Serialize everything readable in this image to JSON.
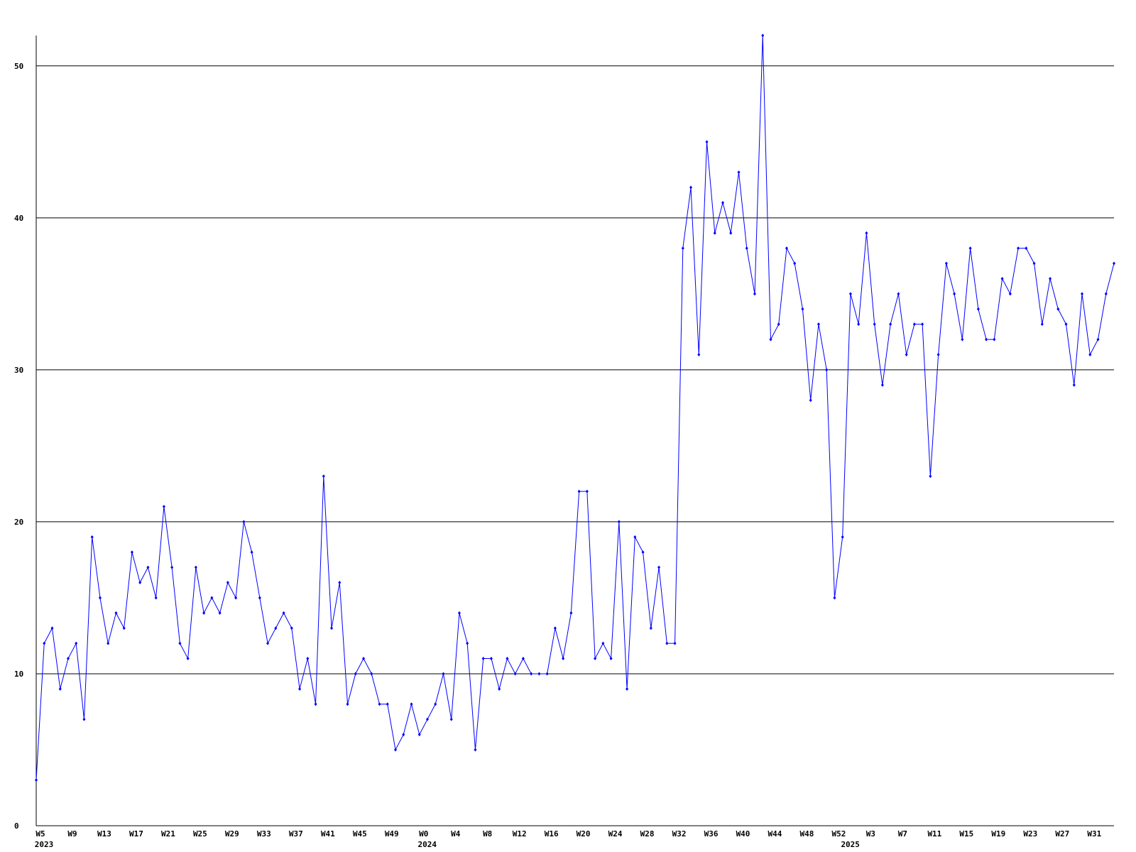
{
  "chart_data": {
    "type": "line",
    "categories": [
      "W5",
      null,
      null,
      null,
      "W9",
      null,
      null,
      null,
      "W13",
      null,
      null,
      null,
      "W17",
      null,
      null,
      null,
      "W21",
      null,
      null,
      null,
      "W25",
      null,
      null,
      null,
      "W29",
      null,
      null,
      null,
      "W33",
      null,
      null,
      null,
      "W37",
      null,
      null,
      null,
      "W41",
      null,
      null,
      null,
      "W45",
      null,
      null,
      null,
      "W49",
      null,
      null,
      null,
      "W0",
      null,
      null,
      null,
      "W4",
      null,
      null,
      null,
      "W8",
      null,
      null,
      null,
      "W12",
      null,
      null,
      null,
      "W16",
      null,
      null,
      null,
      "W20",
      null,
      null,
      null,
      "W24",
      null,
      null,
      null,
      "W28",
      null,
      null,
      null,
      "W32",
      null,
      null,
      null,
      "W36",
      null,
      null,
      null,
      "W40",
      null,
      null,
      null,
      "W44",
      null,
      null,
      null,
      "W48",
      null,
      null,
      null,
      "W52",
      null,
      null,
      null,
      "W3",
      null,
      null,
      null,
      "W7",
      null,
      null,
      null,
      "W11",
      null,
      null,
      null,
      "W15",
      null,
      null,
      null,
      "W19",
      null,
      null,
      null,
      "W23",
      null,
      null,
      null,
      "W27",
      null,
      null,
      null,
      "W31",
      null,
      null,
      null
    ],
    "groups": [
      "2023",
      null,
      null,
      null,
      null,
      null,
      null,
      null,
      null,
      null,
      null,
      null,
      null,
      null,
      null,
      null,
      null,
      null,
      null,
      null,
      null,
      null,
      null,
      null,
      null,
      null,
      null,
      null,
      null,
      null,
      null,
      null,
      null,
      null,
      null,
      null,
      null,
      null,
      null,
      null,
      null,
      null,
      null,
      null,
      null,
      null,
      null,
      null,
      "2024",
      null,
      null,
      null,
      null,
      null,
      null,
      null,
      null,
      null,
      null,
      null,
      null,
      null,
      null,
      null,
      null,
      null,
      null,
      null,
      null,
      null,
      null,
      null,
      null,
      null,
      null,
      null,
      null,
      null,
      null,
      null,
      null,
      null,
      null,
      null,
      null,
      null,
      null,
      null,
      null,
      null,
      null,
      null,
      null,
      null,
      null,
      null,
      null,
      null,
      null,
      null,
      null,
      "2025",
      null,
      null,
      null,
      null,
      null,
      null,
      null,
      null,
      null,
      null,
      null,
      null,
      null,
      null,
      null,
      null,
      null,
      null,
      null,
      null,
      null,
      null,
      null,
      null,
      null,
      null,
      null,
      null,
      null,
      null,
      null,
      null,
      null,
      null
    ],
    "series": [
      {
        "color": "#0000ff",
        "values": [
          3,
          12,
          13,
          9,
          11,
          12,
          7,
          19,
          15,
          12,
          14,
          13,
          18,
          16,
          17,
          15,
          21,
          17,
          12,
          11,
          17,
          14,
          15,
          14,
          16,
          15,
          20,
          18,
          15,
          12,
          13,
          14,
          13,
          9,
          11,
          8,
          23,
          13,
          16,
          8,
          10,
          11,
          10,
          8,
          8,
          5,
          6,
          8,
          6,
          7,
          8,
          10,
          7,
          14,
          12,
          5,
          11,
          11,
          9,
          11,
          10,
          11,
          10,
          10,
          10,
          13,
          11,
          14,
          22,
          22,
          11,
          12,
          11,
          20,
          9,
          19,
          18,
          13,
          17,
          12,
          12,
          38,
          42,
          31,
          45,
          39,
          41,
          39,
          43,
          38,
          35,
          52,
          32,
          33,
          38,
          37,
          34,
          28,
          33,
          30,
          15,
          19,
          35,
          33,
          39,
          33,
          29,
          33,
          35,
          31,
          33,
          33,
          23,
          31,
          37,
          35,
          32,
          38,
          34,
          32,
          32,
          36,
          35,
          38,
          38,
          37,
          33,
          36,
          34,
          33,
          29,
          35,
          31,
          32,
          35,
          37
        ]
      }
    ],
    "ylim": [
      0,
      52
    ],
    "yticks": [
      0,
      10,
      20,
      30,
      40,
      50
    ],
    "grid": true
  }
}
